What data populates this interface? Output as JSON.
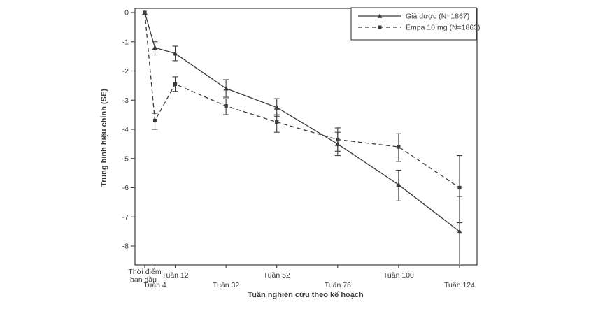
{
  "figure": {
    "background": "#ffffff",
    "ink_color": "#3b3b3b"
  },
  "chart_data": {
    "type": "line",
    "title": "",
    "xlabel": "Tuần nghiên cứu theo kế hoạch",
    "ylabel": "Trung bình hiệu chỉnh (SE)",
    "x": [
      0,
      4,
      12,
      32,
      52,
      76,
      100,
      124
    ],
    "categories": [
      "Thời điểm ban đầu",
      "Tuần 4",
      "Tuần 12",
      "Tuần 32",
      "Tuần 52",
      "Tuần 76",
      "Tuần 100",
      "Tuần 124"
    ],
    "baseline_lines": [
      "Thời điểm",
      "ban đầu"
    ],
    "yticks": [
      0,
      -1,
      -2,
      -3,
      -4,
      -5,
      -6,
      -7,
      -8
    ],
    "ytick_labels": [
      "0",
      "-1",
      "-2",
      "-3",
      "-4",
      "-5",
      "-6",
      "-7",
      "-8"
    ],
    "ylim": [
      -8.7,
      0.15
    ],
    "grid": false,
    "legend_position": "top-right-inside-box",
    "error_bars": true,
    "series": [
      {
        "name": "Giả dược (N=1867)",
        "line_style": "solid",
        "marker": "triangle",
        "color": "#3b3b3b",
        "values": [
          0,
          -1.2,
          -1.4,
          -2.6,
          -3.25,
          -4.5,
          -5.9,
          -7.5
        ],
        "err_low": [
          0,
          -1.45,
          -1.65,
          -2.9,
          -3.55,
          -4.9,
          -6.45,
          -8.6
        ],
        "err_high": [
          0,
          -1.0,
          -1.15,
          -2.3,
          -2.95,
          -4.1,
          -5.4,
          -6.3
        ]
      },
      {
        "name": "Empa 10 mg (N=1863)",
        "line_style": "dashed",
        "marker": "square",
        "color": "#3b3b3b",
        "values": [
          0,
          -3.7,
          -2.45,
          -3.2,
          -3.75,
          -4.35,
          -4.6,
          -6.0
        ],
        "err_low": [
          0,
          -4.0,
          -2.7,
          -3.5,
          -4.1,
          -4.75,
          -5.1,
          -7.2
        ],
        "err_high": [
          0,
          -3.45,
          -2.2,
          -2.95,
          -3.5,
          -3.95,
          -4.15,
          -4.9
        ]
      }
    ]
  }
}
